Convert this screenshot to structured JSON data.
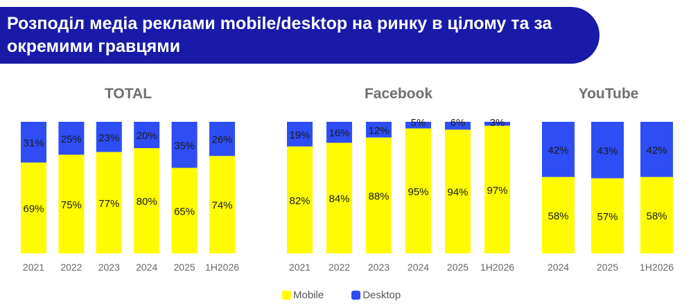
{
  "title": "Розподіл медіа реклами mobile/desktop на ринку в цілому та за окремими гравцями",
  "colors": {
    "mobile": "#fffb00",
    "desktop": "#2e4df5"
  },
  "legend": {
    "mobile": "Mobile",
    "desktop": "Desktop"
  },
  "chart_data": [
    {
      "type": "bar",
      "title": "TOTAL",
      "stacked": true,
      "categories": [
        "2021",
        "2022",
        "2023",
        "2024",
        "2025",
        "1H2026"
      ],
      "series": [
        {
          "name": "Mobile",
          "values": [
            69,
            75,
            77,
            80,
            65,
            74
          ],
          "labels": [
            "69%",
            "75%",
            "77%",
            "80%",
            "65%",
            "74%"
          ]
        },
        {
          "name": "Desktop",
          "values": [
            31,
            25,
            23,
            20,
            35,
            26
          ],
          "labels": [
            "31%",
            "25%",
            "23%",
            "20%",
            "35%",
            "26%"
          ]
        }
      ],
      "ylim": [
        0,
        100
      ]
    },
    {
      "type": "bar",
      "title": "Facebook",
      "stacked": true,
      "categories": [
        "2021",
        "2022",
        "2023",
        "2024",
        "2025",
        "1H2026"
      ],
      "series": [
        {
          "name": "Mobile",
          "values": [
            82,
            84,
            88,
            95,
            94,
            97
          ],
          "labels": [
            "82%",
            "84%",
            "88%",
            "95%",
            "94%",
            "97%"
          ]
        },
        {
          "name": "Desktop",
          "values": [
            19,
            16,
            12,
            5,
            6,
            3
          ],
          "labels": [
            "19%",
            "16%",
            "12%",
            "5%",
            "6%",
            "3%"
          ]
        }
      ],
      "ylim": [
        0,
        100
      ]
    },
    {
      "type": "bar",
      "title": "YouTube",
      "stacked": true,
      "categories": [
        "2024",
        "2025",
        "1H2026"
      ],
      "series": [
        {
          "name": "Mobile",
          "values": [
            58,
            57,
            58
          ],
          "labels": [
            "58%",
            "57%",
            "58%"
          ]
        },
        {
          "name": "Desktop",
          "values": [
            42,
            43,
            42
          ],
          "labels": [
            "42%",
            "43%",
            "42%"
          ]
        }
      ],
      "ylim": [
        0,
        100
      ]
    }
  ]
}
